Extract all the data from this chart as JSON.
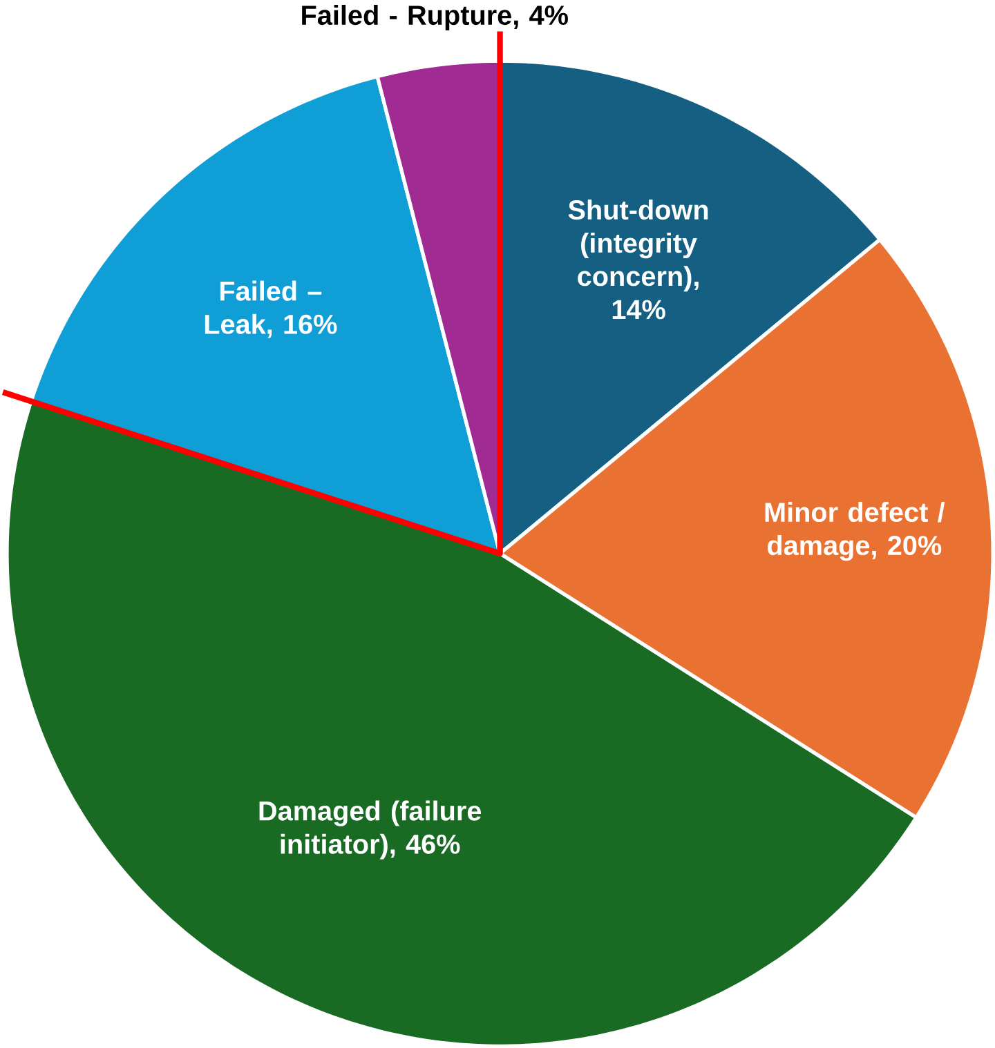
{
  "chart_data": {
    "type": "pie",
    "categories": [
      "Shut-down (integrity concern), 14%",
      "Minor defect / damage, 20%",
      "Damaged (failure initiator), 46%",
      "Failed – Leak, 16%",
      "Failed - Rupture, 4%"
    ],
    "values": [
      14,
      20,
      46,
      16,
      4
    ],
    "colors": [
      "#156082",
      "#e97132",
      "#196b24",
      "#0f9ed5",
      "#a02b93"
    ]
  }
}
